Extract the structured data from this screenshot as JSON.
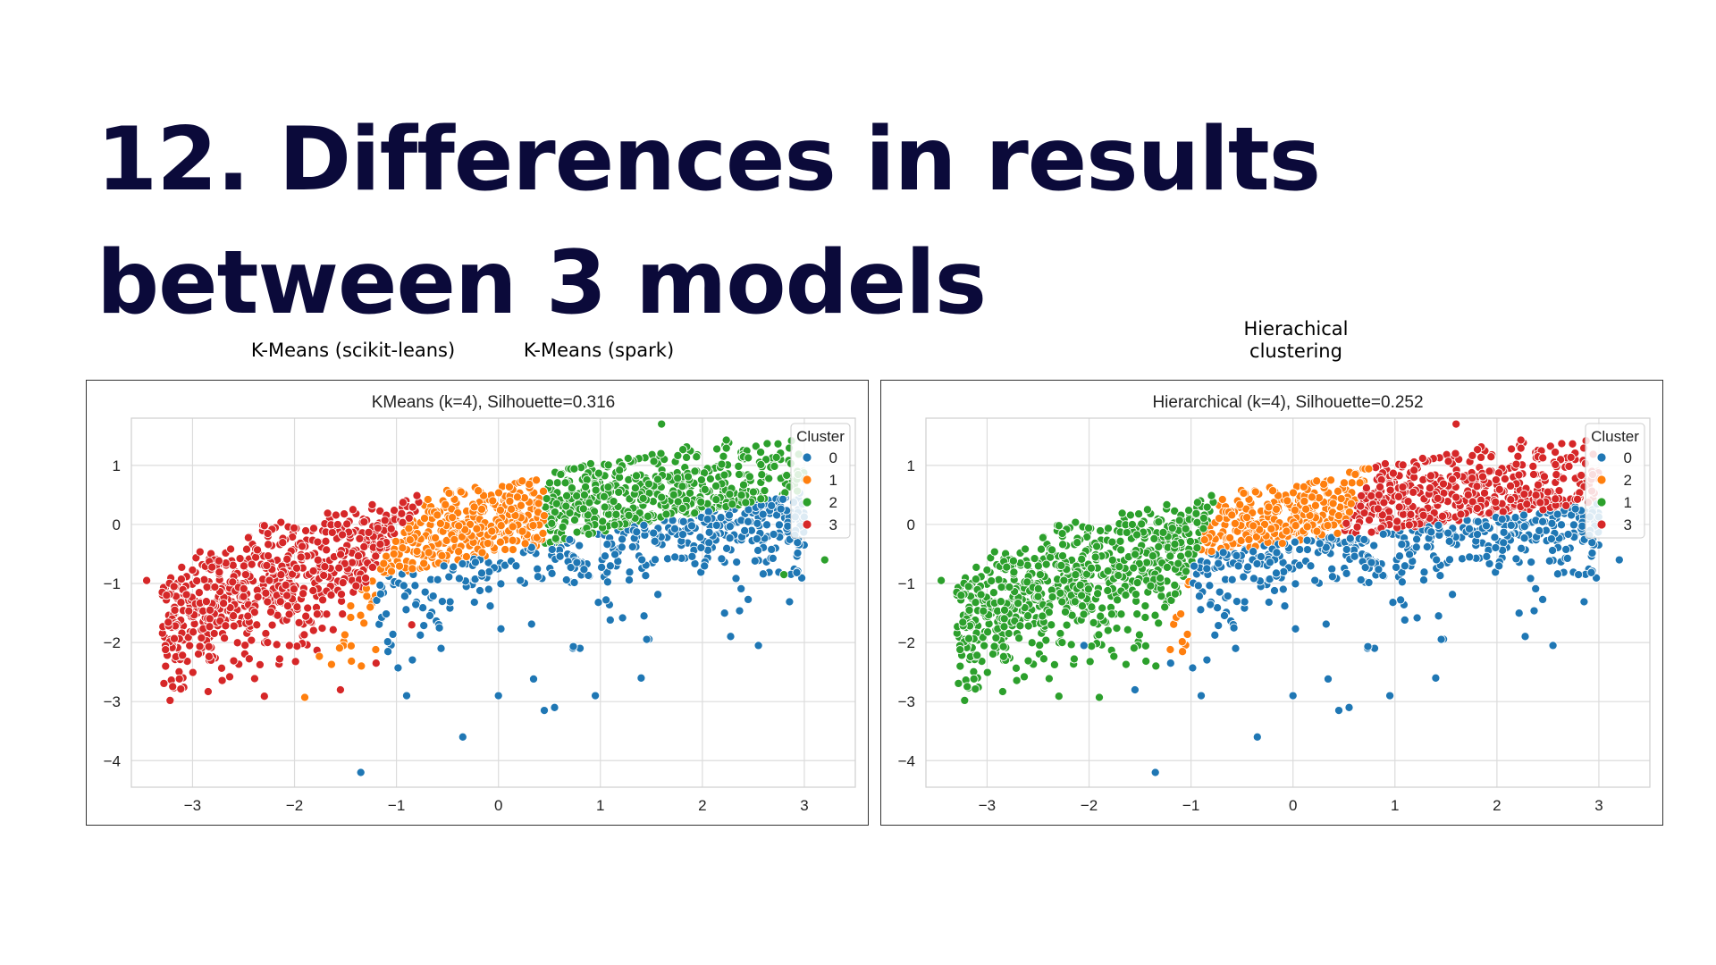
{
  "slide": {
    "title": "12. Differences in results between 3 models",
    "captions": {
      "kmeans_sklearn": "K-Means (scikit-leans)",
      "kmeans_spark": "K-Means (spark)",
      "hierarchical": "Hierachical clustering"
    }
  },
  "chart_data": [
    {
      "type": "scatter",
      "title": "KMeans (k=4), Silhouette=0.316",
      "xlabel": "",
      "ylabel": "",
      "xlim": [
        -3.6,
        3.5
      ],
      "ylim": [
        -4.45,
        1.8
      ],
      "xticks": [
        -3,
        -2,
        -1,
        0,
        1,
        2,
        3
      ],
      "yticks": [
        1,
        0,
        -1,
        -2,
        -3,
        -4
      ],
      "grid": true,
      "legend": {
        "title": "Cluster",
        "placement": "top-right",
        "order": [
          "0",
          "1",
          "2",
          "3"
        ]
      },
      "clusters": [
        {
          "name": "0",
          "color": "#1f77b4"
        },
        {
          "name": "1",
          "color": "#ff7f0e"
        },
        {
          "name": "2",
          "color": "#2ca02c"
        },
        {
          "name": "3",
          "color": "#d62728"
        }
      ],
      "outliers": [
        {
          "x": -1.35,
          "y": -4.2,
          "cluster": "0"
        },
        {
          "x": -0.35,
          "y": -3.6,
          "cluster": "0"
        },
        {
          "x": -0.9,
          "y": -2.9,
          "cluster": "0"
        },
        {
          "x": 0.0,
          "y": -2.9,
          "cluster": "0"
        },
        {
          "x": 0.45,
          "y": -3.15,
          "cluster": "0"
        },
        {
          "x": 0.55,
          "y": -3.1,
          "cluster": "0"
        },
        {
          "x": 0.95,
          "y": -2.9,
          "cluster": "0"
        },
        {
          "x": 1.4,
          "y": -2.6,
          "cluster": "0"
        },
        {
          "x": 3.2,
          "y": -0.6,
          "cluster": "2"
        },
        {
          "x": 2.55,
          "y": -2.05,
          "cluster": "0"
        },
        {
          "x": 1.6,
          "y": 1.7,
          "cluster": "2"
        },
        {
          "x": -3.45,
          "y": -0.95,
          "cluster": "3"
        },
        {
          "x": -1.55,
          "y": -2.8,
          "cluster": "3"
        },
        {
          "x": -2.05,
          "y": -2.05,
          "cluster": "3"
        },
        {
          "x": -1.2,
          "y": -2.35,
          "cluster": "3"
        },
        {
          "x": -0.85,
          "y": -1.7,
          "cluster": "3"
        },
        {
          "x": 2.8,
          "y": -0.85,
          "cluster": "2"
        },
        {
          "x": 2.5,
          "y": 0.55,
          "cluster": "2"
        }
      ]
    },
    {
      "type": "scatter",
      "title": "Hierarchical (k=4), Silhouette=0.252",
      "xlabel": "",
      "ylabel": "",
      "xlim": [
        -3.6,
        3.5
      ],
      "ylim": [
        -4.45,
        1.8
      ],
      "xticks": [
        -3,
        -2,
        -1,
        0,
        1,
        2,
        3
      ],
      "yticks": [
        1,
        0,
        -1,
        -2,
        -3,
        -4
      ],
      "grid": true,
      "legend": {
        "title": "Cluster",
        "placement": "top-right",
        "order": [
          "0",
          "2",
          "1",
          "3"
        ]
      },
      "clusters": [
        {
          "name": "0",
          "color": "#1f77b4"
        },
        {
          "name": "1",
          "color": "#2ca02c"
        },
        {
          "name": "2",
          "color": "#ff7f0e"
        },
        {
          "name": "3",
          "color": "#d62728"
        }
      ],
      "outliers": [
        {
          "x": -1.35,
          "y": -4.2,
          "cluster": "0"
        },
        {
          "x": -0.35,
          "y": -3.6,
          "cluster": "0"
        },
        {
          "x": -0.9,
          "y": -2.9,
          "cluster": "0"
        },
        {
          "x": 0.0,
          "y": -2.9,
          "cluster": "0"
        },
        {
          "x": 0.45,
          "y": -3.15,
          "cluster": "0"
        },
        {
          "x": 0.55,
          "y": -3.1,
          "cluster": "0"
        },
        {
          "x": 0.95,
          "y": -2.9,
          "cluster": "0"
        },
        {
          "x": 1.4,
          "y": -2.6,
          "cluster": "0"
        },
        {
          "x": 3.2,
          "y": -0.6,
          "cluster": "0"
        },
        {
          "x": 2.55,
          "y": -2.05,
          "cluster": "0"
        },
        {
          "x": 1.6,
          "y": 1.7,
          "cluster": "3"
        },
        {
          "x": -3.45,
          "y": -0.95,
          "cluster": "1"
        },
        {
          "x": -1.55,
          "y": -2.8,
          "cluster": "0"
        },
        {
          "x": -2.05,
          "y": -2.05,
          "cluster": "0"
        },
        {
          "x": -1.2,
          "y": -2.35,
          "cluster": "0"
        },
        {
          "x": 2.8,
          "y": -0.85,
          "cluster": "0"
        },
        {
          "x": 2.5,
          "y": 0.55,
          "cluster": "3"
        }
      ]
    }
  ]
}
